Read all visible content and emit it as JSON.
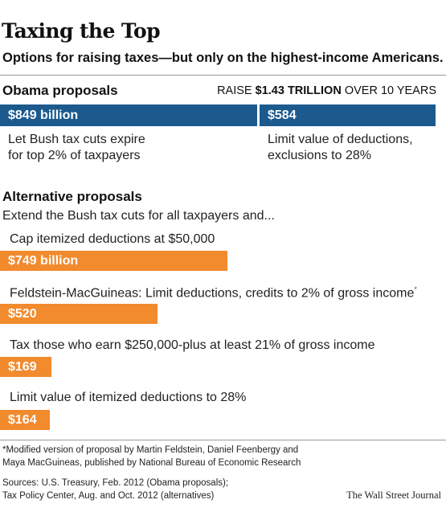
{
  "title": "Taxing the Top",
  "subtitle": "Options for raising taxes—but only on the highest-income Americans.",
  "obama": {
    "heading": "Obama proposals",
    "raise_prefix": "RAISE ",
    "raise_amount": "$1.43 TRILLION",
    "raise_suffix": " OVER 10 YEARS",
    "items": [
      {
        "value_label": "$849 billion",
        "line1": "Let Bush tax cuts expire",
        "line2": "for top 2% of taxpayers",
        "color": "#1c5a8e"
      },
      {
        "value_label": "$584",
        "line1": "Limit value of deductions,",
        "line2": "exclusions to 28%",
        "color": "#1c5a8e"
      }
    ]
  },
  "alternative": {
    "heading": "Alternative proposals",
    "intro": "Extend the Bush tax cuts for all taxpayers and...",
    "items": [
      {
        "label": "Cap itemized deductions at $50,000",
        "footnote_mark": "",
        "value_label": "$749 billion",
        "color": "#f28a2e"
      },
      {
        "label": "Feldstein-MacGuineas: Limit deductions, credits to 2% of gross income",
        "footnote_mark": "*",
        "value_label": "$520",
        "color": "#f28a2e"
      },
      {
        "label": "Tax those who earn $250,000-plus at least 21% of gross income",
        "footnote_mark": "",
        "value_label": "$169",
        "color": "#f28a2e"
      },
      {
        "label": "Limit value of itemized deductions to 28%",
        "footnote_mark": "",
        "value_label": "$164",
        "color": "#f28a2e"
      }
    ]
  },
  "footnote": {
    "line1": "*Modified version of proposal by Martin Feldstein, Daniel Feenbergy and",
    "line2": "Maya MacGuineas, published by National Bureau of Economic Research"
  },
  "sources": {
    "line1": "Sources: U.S. Treasury, Feb. 2012 (Obama proposals);",
    "line2": "Tax Policy Center, Aug. and Oct. 2012 (alternatives)"
  },
  "credit": "The Wall Street Journal",
  "chart_data": {
    "type": "bar",
    "title": "Taxing the Top",
    "subtitle": "Options for raising taxes—but only on the highest-income Americans.",
    "unit": "billions of dollars over 10 years",
    "obama_total": 1430,
    "series": [
      {
        "name": "Obama proposals",
        "categories": [
          "Let Bush tax cuts expire for top 2% of taxpayers",
          "Limit value of deductions, exclusions to 28%"
        ],
        "values": [
          849,
          584
        ]
      },
      {
        "name": "Alternative proposals",
        "categories": [
          "Cap itemized deductions at $50,000",
          "Feldstein-MacGuineas: Limit deductions, credits to 2% of gross income",
          "Tax those who earn $250,000-plus at least 21% of gross income",
          "Limit value of itemized deductions to 28%"
        ],
        "values": [
          749,
          520,
          169,
          164
        ]
      }
    ]
  }
}
